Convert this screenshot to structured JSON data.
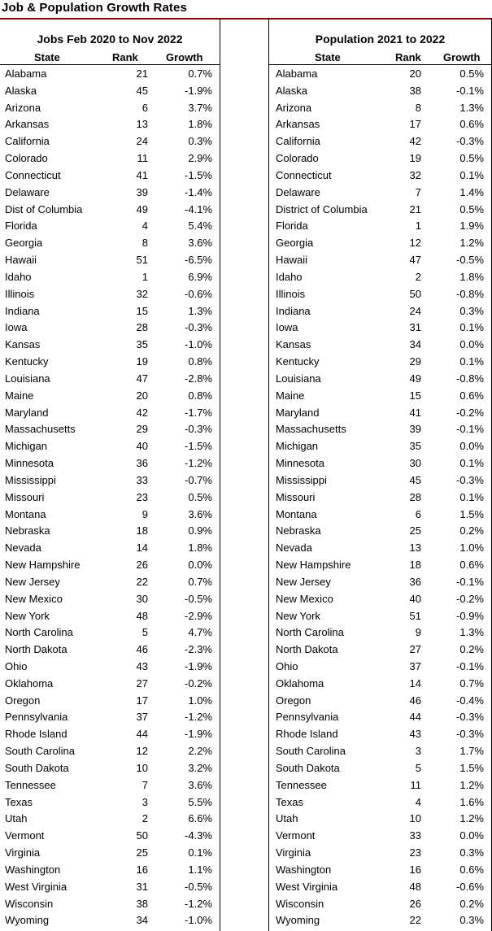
{
  "title": "Job & Population Growth Rates",
  "jobs": {
    "heading": "Jobs Feb 2020 to Nov 2022",
    "columns": {
      "state": "State",
      "rank": "Rank",
      "growth": "Growth"
    },
    "rows": [
      [
        "Alabama",
        "21",
        "0.7%"
      ],
      [
        "Alaska",
        "45",
        "-1.9%"
      ],
      [
        "Arizona",
        "6",
        "3.7%"
      ],
      [
        "Arkansas",
        "13",
        "1.8%"
      ],
      [
        "California",
        "24",
        "0.3%"
      ],
      [
        "Colorado",
        "11",
        "2.9%"
      ],
      [
        "Connecticut",
        "41",
        "-1.5%"
      ],
      [
        "Delaware",
        "39",
        "-1.4%"
      ],
      [
        "Dist of Columbia",
        "49",
        "-4.1%"
      ],
      [
        "Florida",
        "4",
        "5.4%"
      ],
      [
        "Georgia",
        "8",
        "3.6%"
      ],
      [
        "Hawaii",
        "51",
        "-6.5%"
      ],
      [
        "Idaho",
        "1",
        "6.9%"
      ],
      [
        "Illinois",
        "32",
        "-0.6%"
      ],
      [
        "Indiana",
        "15",
        "1.3%"
      ],
      [
        "Iowa",
        "28",
        "-0.3%"
      ],
      [
        "Kansas",
        "35",
        "-1.0%"
      ],
      [
        "Kentucky",
        "19",
        "0.8%"
      ],
      [
        "Louisiana",
        "47",
        "-2.8%"
      ],
      [
        "Maine",
        "20",
        "0.8%"
      ],
      [
        "Maryland",
        "42",
        "-1.7%"
      ],
      [
        "Massachusetts",
        "29",
        "-0.3%"
      ],
      [
        "Michigan",
        "40",
        "-1.5%"
      ],
      [
        "Minnesota",
        "36",
        "-1.2%"
      ],
      [
        "Mississippi",
        "33",
        "-0.7%"
      ],
      [
        "Missouri",
        "23",
        "0.5%"
      ],
      [
        "Montana",
        "9",
        "3.6%"
      ],
      [
        "Nebraska",
        "18",
        "0.9%"
      ],
      [
        "Nevada",
        "14",
        "1.8%"
      ],
      [
        "New Hampshire",
        "26",
        "0.0%"
      ],
      [
        "New Jersey",
        "22",
        "0.7%"
      ],
      [
        "New Mexico",
        "30",
        "-0.5%"
      ],
      [
        "New York",
        "48",
        "-2.9%"
      ],
      [
        "North Carolina",
        "5",
        "4.7%"
      ],
      [
        "North Dakota",
        "46",
        "-2.3%"
      ],
      [
        "Ohio",
        "43",
        "-1.9%"
      ],
      [
        "Oklahoma",
        "27",
        "-0.2%"
      ],
      [
        "Oregon",
        "17",
        "1.0%"
      ],
      [
        "Pennsylvania",
        "37",
        "-1.2%"
      ],
      [
        "Rhode Island",
        "44",
        "-1.9%"
      ],
      [
        "South Carolina",
        "12",
        "2.2%"
      ],
      [
        "South Dakota",
        "10",
        "3.2%"
      ],
      [
        "Tennessee",
        "7",
        "3.6%"
      ],
      [
        "Texas",
        "3",
        "5.5%"
      ],
      [
        "Utah",
        "2",
        "6.6%"
      ],
      [
        "Vermont",
        "50",
        "-4.3%"
      ],
      [
        "Virginia",
        "25",
        "0.1%"
      ],
      [
        "Washington",
        "16",
        "1.1%"
      ],
      [
        "West Virginia",
        "31",
        "-0.5%"
      ],
      [
        "Wisconsin",
        "38",
        "-1.2%"
      ],
      [
        "Wyoming",
        "34",
        "-1.0%"
      ]
    ]
  },
  "population": {
    "heading": "Population 2021 to 2022",
    "columns": {
      "state": "State",
      "rank": "Rank",
      "growth": "Growth"
    },
    "rows": [
      [
        "Alabama",
        "20",
        "0.5%"
      ],
      [
        "Alaska",
        "38",
        "-0.1%"
      ],
      [
        "Arizona",
        "8",
        "1.3%"
      ],
      [
        "Arkansas",
        "17",
        "0.6%"
      ],
      [
        "California",
        "42",
        "-0.3%"
      ],
      [
        "Colorado",
        "19",
        "0.5%"
      ],
      [
        "Connecticut",
        "32",
        "0.1%"
      ],
      [
        "Delaware",
        "7",
        "1.4%"
      ],
      [
        "District of Columbia",
        "21",
        "0.5%"
      ],
      [
        "Florida",
        "1",
        "1.9%"
      ],
      [
        "Georgia",
        "12",
        "1.2%"
      ],
      [
        "Hawaii",
        "47",
        "-0.5%"
      ],
      [
        "Idaho",
        "2",
        "1.8%"
      ],
      [
        "Illinois",
        "50",
        "-0.8%"
      ],
      [
        "Indiana",
        "24",
        "0.3%"
      ],
      [
        "Iowa",
        "31",
        "0.1%"
      ],
      [
        "Kansas",
        "34",
        "0.0%"
      ],
      [
        "Kentucky",
        "29",
        "0.1%"
      ],
      [
        "Louisiana",
        "49",
        "-0.8%"
      ],
      [
        "Maine",
        "15",
        "0.6%"
      ],
      [
        "Maryland",
        "41",
        "-0.2%"
      ],
      [
        "Massachusetts",
        "39",
        "-0.1%"
      ],
      [
        "Michigan",
        "35",
        "0.0%"
      ],
      [
        "Minnesota",
        "30",
        "0.1%"
      ],
      [
        "Mississippi",
        "45",
        "-0.3%"
      ],
      [
        "Missouri",
        "28",
        "0.1%"
      ],
      [
        "Montana",
        "6",
        "1.5%"
      ],
      [
        "Nebraska",
        "25",
        "0.2%"
      ],
      [
        "Nevada",
        "13",
        "1.0%"
      ],
      [
        "New Hampshire",
        "18",
        "0.6%"
      ],
      [
        "New Jersey",
        "36",
        "-0.1%"
      ],
      [
        "New Mexico",
        "40",
        "-0.2%"
      ],
      [
        "New York",
        "51",
        "-0.9%"
      ],
      [
        "North Carolina",
        "9",
        "1.3%"
      ],
      [
        "North Dakota",
        "27",
        "0.2%"
      ],
      [
        "Ohio",
        "37",
        "-0.1%"
      ],
      [
        "Oklahoma",
        "14",
        "0.7%"
      ],
      [
        "Oregon",
        "46",
        "-0.4%"
      ],
      [
        "Pennsylvania",
        "44",
        "-0.3%"
      ],
      [
        "Rhode Island",
        "43",
        "-0.3%"
      ],
      [
        "South Carolina",
        "3",
        "1.7%"
      ],
      [
        "South Dakota",
        "5",
        "1.5%"
      ],
      [
        "Tennessee",
        "11",
        "1.2%"
      ],
      [
        "Texas",
        "4",
        "1.6%"
      ],
      [
        "Utah",
        "10",
        "1.2%"
      ],
      [
        "Vermont",
        "33",
        "0.0%"
      ],
      [
        "Virginia",
        "23",
        "0.3%"
      ],
      [
        "Washington",
        "16",
        "0.6%"
      ],
      [
        "West Virginia",
        "48",
        "-0.6%"
      ],
      [
        "Wisconsin",
        "26",
        "0.2%"
      ],
      [
        "Wyoming",
        "22",
        "0.3%"
      ]
    ]
  }
}
